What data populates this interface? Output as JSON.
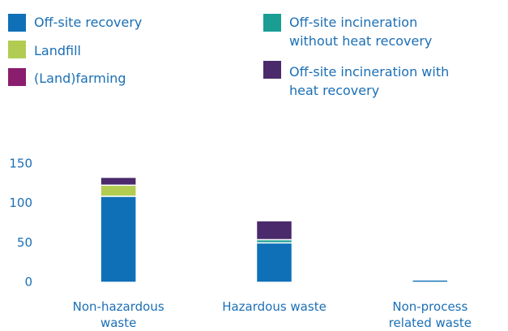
{
  "chart_data": {
    "type": "stacked_bar",
    "categories": [
      "Non-hazardous waste",
      "Hazardous waste",
      "Non-process related waste"
    ],
    "series": [
      {
        "name": "Off-site recovery",
        "color": "#0f70b7",
        "values": [
          109,
          50,
          3
        ]
      },
      {
        "name": "Landfill",
        "color": "#b2cc52",
        "values": [
          14,
          0,
          0
        ]
      },
      {
        "name": "Off-site incineration without heat recovery",
        "color": "#1a9e94",
        "values": [
          0,
          4,
          0
        ]
      },
      {
        "name": "(Land)farming",
        "color": "#8a1d6e",
        "values": [
          0,
          0,
          0
        ]
      },
      {
        "name": "Off-site incineration with heat recovery",
        "color": "#4a2a6b",
        "values": [
          10,
          24,
          0
        ]
      }
    ],
    "ylim": [
      0,
      150
    ],
    "yticks": [
      0,
      50,
      100,
      150
    ]
  }
}
